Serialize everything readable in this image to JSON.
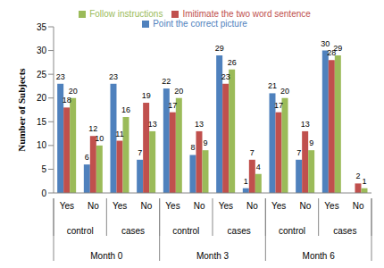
{
  "chart_data": {
    "type": "bar",
    "y_label": "Number of Subjects",
    "categories": [
      [
        "Month 0",
        "control",
        "Yes"
      ],
      [
        "Month 0",
        "control",
        "No"
      ],
      [
        "Month 0",
        "cases",
        "Yes"
      ],
      [
        "Month 0",
        "cases",
        "No"
      ],
      [
        "Month 3",
        "control",
        "Yes"
      ],
      [
        "Month 3",
        "control",
        "No"
      ],
      [
        "Month 3",
        "cases",
        "Yes"
      ],
      [
        "Month 3",
        "cases",
        "No"
      ],
      [
        "Month 6",
        "control",
        "Yes"
      ],
      [
        "Month 6",
        "control",
        "No"
      ],
      [
        "Month 6",
        "cases",
        "Yes"
      ],
      [
        "Month 6",
        "cases",
        "No"
      ]
    ],
    "series": [
      {
        "name": "Point the correct picture",
        "color": "#4f81bd",
        "values": [
          23,
          6,
          23,
          7,
          22,
          8,
          29,
          1,
          21,
          7,
          30,
          0
        ]
      },
      {
        "name": "Imitimate the two word sentence",
        "color": "#c0504d",
        "values": [
          18,
          12,
          11,
          19,
          17,
          13,
          23,
          7,
          17,
          13,
          28,
          2
        ]
      },
      {
        "name": "Follow instructions",
        "color": "#9bbb59",
        "values": [
          20,
          10,
          16,
          13,
          20,
          9,
          26,
          4,
          20,
          9,
          29,
          1
        ]
      }
    ],
    "ylim": [
      0,
      35
    ],
    "yticks": [
      0,
      5,
      10,
      15,
      20,
      25,
      30,
      35
    ],
    "grid": false,
    "legend": "top",
    "data_labels": true
  }
}
